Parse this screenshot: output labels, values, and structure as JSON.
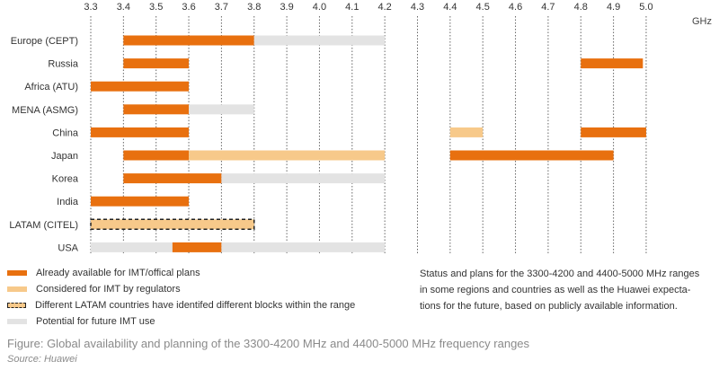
{
  "chart_data": {
    "type": "bar",
    "orientation": "horizontal-range",
    "unit": "GHz",
    "ticks": [
      "3.3",
      "3.4",
      "3.5",
      "3.6",
      "3.7",
      "3.8",
      "3.9",
      "4.0",
      "4.1",
      "4.2",
      "4.3",
      "4.4",
      "4.5",
      "4.6",
      "4.7",
      "4.8",
      "4.9",
      "5.0"
    ],
    "xlim": [
      3.3,
      5.0
    ],
    "grid": "vertical dashed",
    "categories": [
      "Europe (CEPT)",
      "Russia",
      "Africa (ATU)",
      "MENA (ASMG)",
      "China",
      "Japan",
      "Korea",
      "India",
      "LATAM (CITEL)",
      "USA"
    ],
    "series": [
      {
        "name": "Already available for IMT/offical plans",
        "color": "#e8700f"
      },
      {
        "name": "Considered for IMT by regulators",
        "color": "#f7c98a"
      },
      {
        "name": "Different LATAM countries have identifed different blocks within the range",
        "color": "#f7c98a"
      },
      {
        "name": "Potential for future IMT use",
        "color": "#e3e3e3"
      }
    ],
    "bars": [
      {
        "category": "Europe (CEPT)",
        "series": 0,
        "start": 3.4,
        "end": 3.8
      },
      {
        "category": "Europe (CEPT)",
        "series": 3,
        "start": 3.8,
        "end": 4.2
      },
      {
        "category": "Russia",
        "series": 0,
        "start": 3.4,
        "end": 3.6
      },
      {
        "category": "Russia",
        "series": 0,
        "start": 4.8,
        "end": 4.99
      },
      {
        "category": "Africa (ATU)",
        "series": 0,
        "start": 3.3,
        "end": 3.6
      },
      {
        "category": "MENA (ASMG)",
        "series": 0,
        "start": 3.4,
        "end": 3.6
      },
      {
        "category": "MENA (ASMG)",
        "series": 3,
        "start": 3.6,
        "end": 3.8
      },
      {
        "category": "China",
        "series": 0,
        "start": 3.3,
        "end": 3.6
      },
      {
        "category": "China",
        "series": 1,
        "start": 4.4,
        "end": 4.5
      },
      {
        "category": "China",
        "series": 0,
        "start": 4.8,
        "end": 5.0
      },
      {
        "category": "Japan",
        "series": 0,
        "start": 3.4,
        "end": 3.6
      },
      {
        "category": "Japan",
        "series": 1,
        "start": 3.6,
        "end": 4.2
      },
      {
        "category": "Japan",
        "series": 0,
        "start": 4.4,
        "end": 4.9
      },
      {
        "category": "Korea",
        "series": 0,
        "start": 3.4,
        "end": 3.7
      },
      {
        "category": "Korea",
        "series": 3,
        "start": 3.7,
        "end": 4.2
      },
      {
        "category": "India",
        "series": 0,
        "start": 3.3,
        "end": 3.6
      },
      {
        "category": "LATAM (CITEL)",
        "series": 2,
        "start": 3.3,
        "end": 3.8
      },
      {
        "category": "USA",
        "series": 3,
        "start": 3.3,
        "end": 3.55
      },
      {
        "category": "USA",
        "series": 0,
        "start": 3.55,
        "end": 3.7
      },
      {
        "category": "USA",
        "series": 3,
        "start": 3.7,
        "end": 4.2
      }
    ]
  },
  "note": "Status and plans for the 3300-4200 and 4400-5000 MHz ranges in some regions and countries as well as the Huawei expecta-tions for the future, based on publicly available information.",
  "note_lines": [
    "Status and plans for the 3300-4200 and 4400-5000 MHz ranges",
    "in some regions and countries as well as the Huawei expecta-",
    "tions for the future, based on publicly available information."
  ],
  "caption": "Figure: Global availability and planning of the 3300-4200 MHz and 4400-5000 MHz frequency ranges",
  "source": "Source: Huawei"
}
